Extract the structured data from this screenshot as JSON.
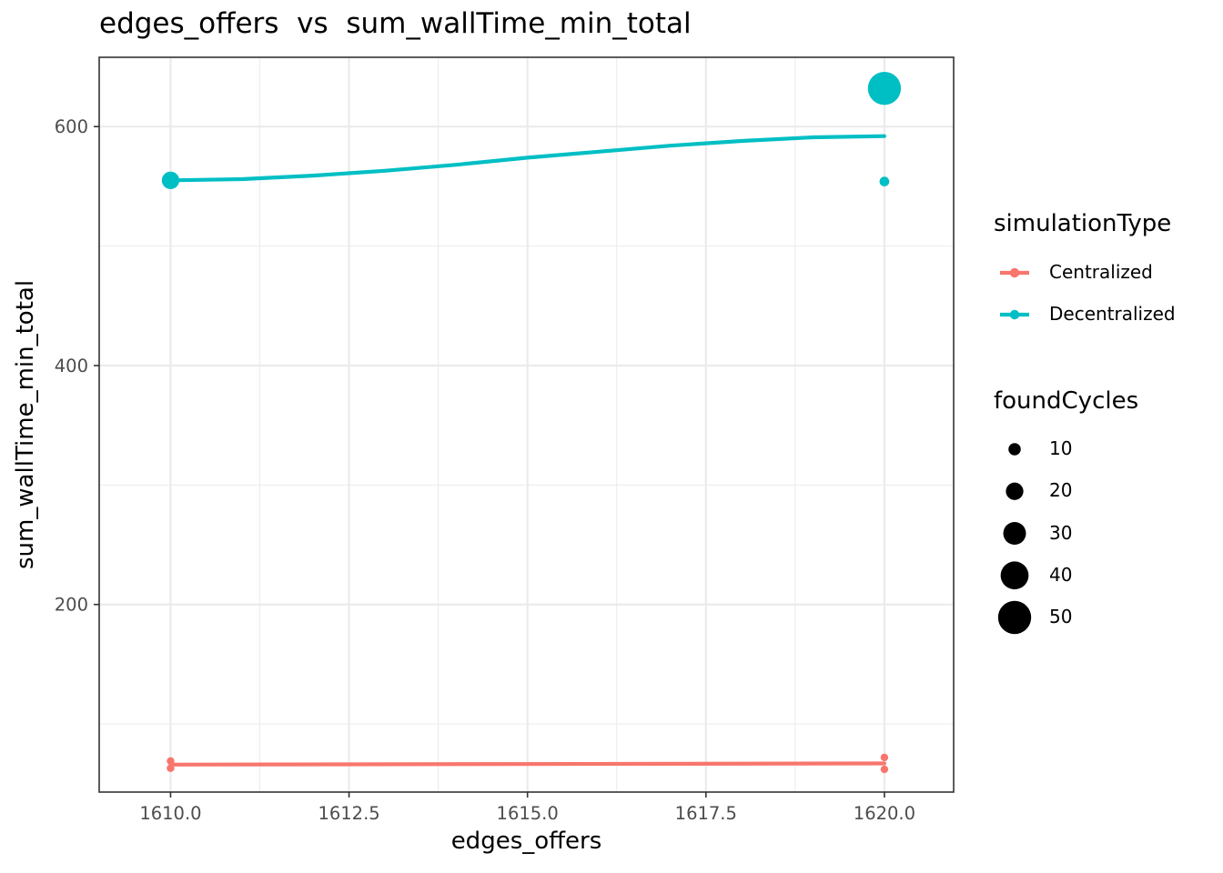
{
  "chart_data": {
    "type": "scatter",
    "title": "edges_offers  vs  sum_wallTime_min_total",
    "xlabel": "edges_offers",
    "ylabel": "sum_wallTime_min_total",
    "xlim": [
      1609.0,
      1620.97
    ],
    "ylim": [
      43,
      658
    ],
    "x_ticks": [
      1610.0,
      1612.5,
      1615.0,
      1617.5,
      1620.0
    ],
    "x_tick_labels": [
      "1610.0",
      "1612.5",
      "1615.0",
      "1617.5",
      "1620.0"
    ],
    "y_ticks": [
      200,
      400,
      600
    ],
    "y_tick_labels": [
      "200",
      "400",
      "600"
    ],
    "grid": true,
    "legend_position": "right",
    "series": [
      {
        "name": "Centralized",
        "color": "#f8766d",
        "points": [
          {
            "x": 1610,
            "y": 69,
            "foundCycles": 1
          },
          {
            "x": 1610,
            "y": 63,
            "foundCycles": 1
          },
          {
            "x": 1620,
            "y": 72,
            "foundCycles": 1
          },
          {
            "x": 1620,
            "y": 62,
            "foundCycles": 1
          }
        ],
        "smooth": [
          {
            "x": 1610,
            "y": 66
          },
          {
            "x": 1620,
            "y": 67
          }
        ]
      },
      {
        "name": "Decentralized",
        "color": "#00bfc4",
        "points": [
          {
            "x": 1610,
            "y": 555,
            "foundCycles": 20
          },
          {
            "x": 1620,
            "y": 632,
            "foundCycles": 50
          },
          {
            "x": 1620,
            "y": 554,
            "foundCycles": 5
          }
        ],
        "smooth": [
          {
            "x": 1610,
            "y": 555
          },
          {
            "x": 1611,
            "y": 556
          },
          {
            "x": 1612,
            "y": 559
          },
          {
            "x": 1613,
            "y": 563
          },
          {
            "x": 1614,
            "y": 568
          },
          {
            "x": 1615,
            "y": 574
          },
          {
            "x": 1616,
            "y": 579
          },
          {
            "x": 1617,
            "y": 584
          },
          {
            "x": 1618,
            "y": 588
          },
          {
            "x": 1619,
            "y": 591
          },
          {
            "x": 1620,
            "y": 592
          }
        ]
      }
    ],
    "legends": {
      "color": {
        "title": "simulationType",
        "entries": [
          {
            "label": "Centralized",
            "color": "#f8766d"
          },
          {
            "label": "Decentralized",
            "color": "#00bfc4"
          }
        ]
      },
      "size": {
        "title": "foundCycles",
        "entries": [
          {
            "label": "10",
            "value": 10
          },
          {
            "label": "20",
            "value": 20
          },
          {
            "label": "30",
            "value": 30
          },
          {
            "label": "40",
            "value": 40
          },
          {
            "label": "50",
            "value": 50
          }
        ]
      }
    }
  }
}
